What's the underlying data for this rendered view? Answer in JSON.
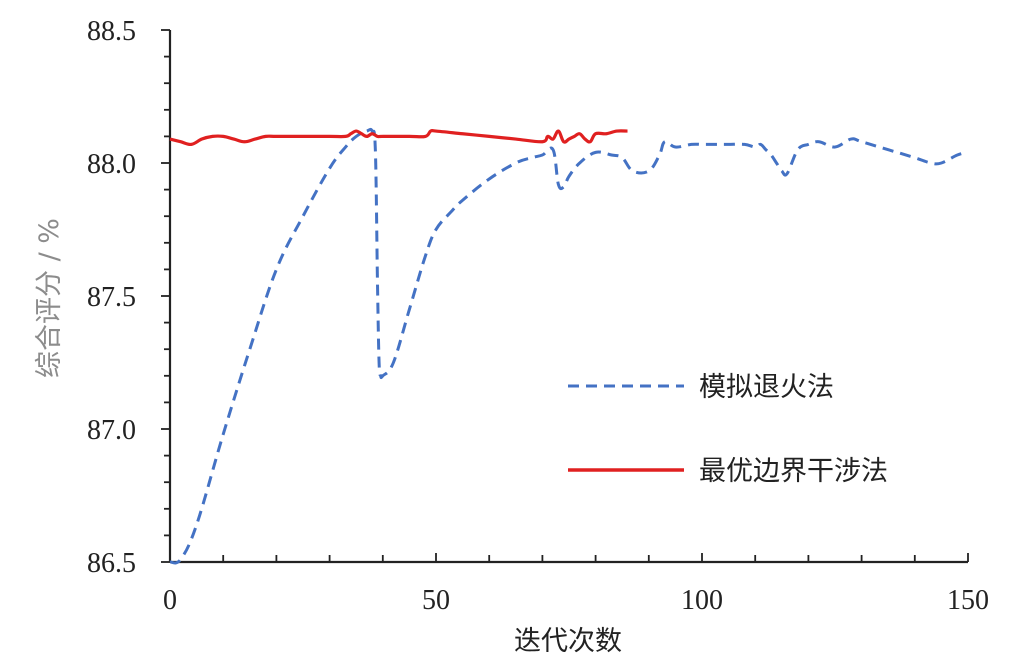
{
  "chart_data": {
    "type": "line",
    "title": "",
    "xlabel": "迭代次数",
    "ylabel": "综合评分 / %",
    "xlim": [
      0,
      150
    ],
    "ylim": [
      86.5,
      88.5
    ],
    "xticks": [
      0,
      50,
      100,
      150
    ],
    "yticks": [
      86.5,
      87.0,
      87.5,
      88.0,
      88.5
    ],
    "xtick_labels": [
      "0",
      "50",
      "100",
      "150"
    ],
    "ytick_labels": [
      "86.5",
      "87.0",
      "87.5",
      "88.0",
      "88.5"
    ],
    "grid": false,
    "legend_position": "center-right",
    "colors": {
      "axis": "#222222",
      "ylabel": "#8c8c8c",
      "xlabel": "#222222"
    },
    "series": [
      {
        "name": "模拟退火法",
        "color": "#4472c4",
        "style": "dashed",
        "x": [
          0,
          2,
          5,
          10,
          15,
          20,
          25,
          30,
          33,
          35,
          37,
          38,
          38.6,
          39,
          39.3,
          39.6,
          40,
          42,
          45,
          48,
          50,
          53,
          55,
          60,
          65,
          68,
          70,
          72,
          73,
          74,
          75,
          77,
          80,
          83,
          85,
          87,
          90,
          92,
          93,
          95,
          98,
          100,
          103,
          105,
          108,
          110,
          111,
          112,
          113,
          114,
          115,
          116,
          118,
          120,
          122,
          125,
          128,
          130,
          135,
          140,
          143,
          145,
          148,
          150
        ],
        "y": [
          86.5,
          86.51,
          86.64,
          86.98,
          87.3,
          87.6,
          87.8,
          87.98,
          88.06,
          88.1,
          88.12,
          88.12,
          88.05,
          87.55,
          87.25,
          87.2,
          87.2,
          87.25,
          87.45,
          87.65,
          87.75,
          87.82,
          87.86,
          87.94,
          88.0,
          88.02,
          88.03,
          88.05,
          87.92,
          87.91,
          87.95,
          88.0,
          88.04,
          88.03,
          88.02,
          87.97,
          87.97,
          88.03,
          88.08,
          88.06,
          88.07,
          88.07,
          88.07,
          88.07,
          88.07,
          88.06,
          88.07,
          88.05,
          88.03,
          88.0,
          87.97,
          87.96,
          88.05,
          88.07,
          88.08,
          88.06,
          88.09,
          88.08,
          88.05,
          88.02,
          88.0,
          88.0,
          88.03,
          88.04
        ]
      },
      {
        "name": "最优边界干涉法",
        "color": "#e02020",
        "style": "solid",
        "x": [
          0,
          2,
          4,
          6,
          8,
          10,
          12,
          14,
          16,
          18,
          20,
          25,
          30,
          33,
          34,
          35,
          36,
          37,
          38,
          39,
          40,
          45,
          48,
          49,
          50,
          55,
          60,
          65,
          70,
          71,
          72,
          73,
          74,
          75,
          76,
          77,
          78,
          79,
          80,
          82,
          84,
          86
        ],
        "y": [
          88.09,
          88.08,
          88.07,
          88.09,
          88.1,
          88.1,
          88.09,
          88.08,
          88.09,
          88.1,
          88.1,
          88.1,
          88.1,
          88.1,
          88.11,
          88.12,
          88.11,
          88.1,
          88.11,
          88.1,
          88.1,
          88.1,
          88.1,
          88.12,
          88.12,
          88.11,
          88.1,
          88.09,
          88.08,
          88.1,
          88.09,
          88.12,
          88.08,
          88.09,
          88.1,
          88.11,
          88.09,
          88.08,
          88.11,
          88.11,
          88.12,
          88.12
        ]
      }
    ]
  }
}
